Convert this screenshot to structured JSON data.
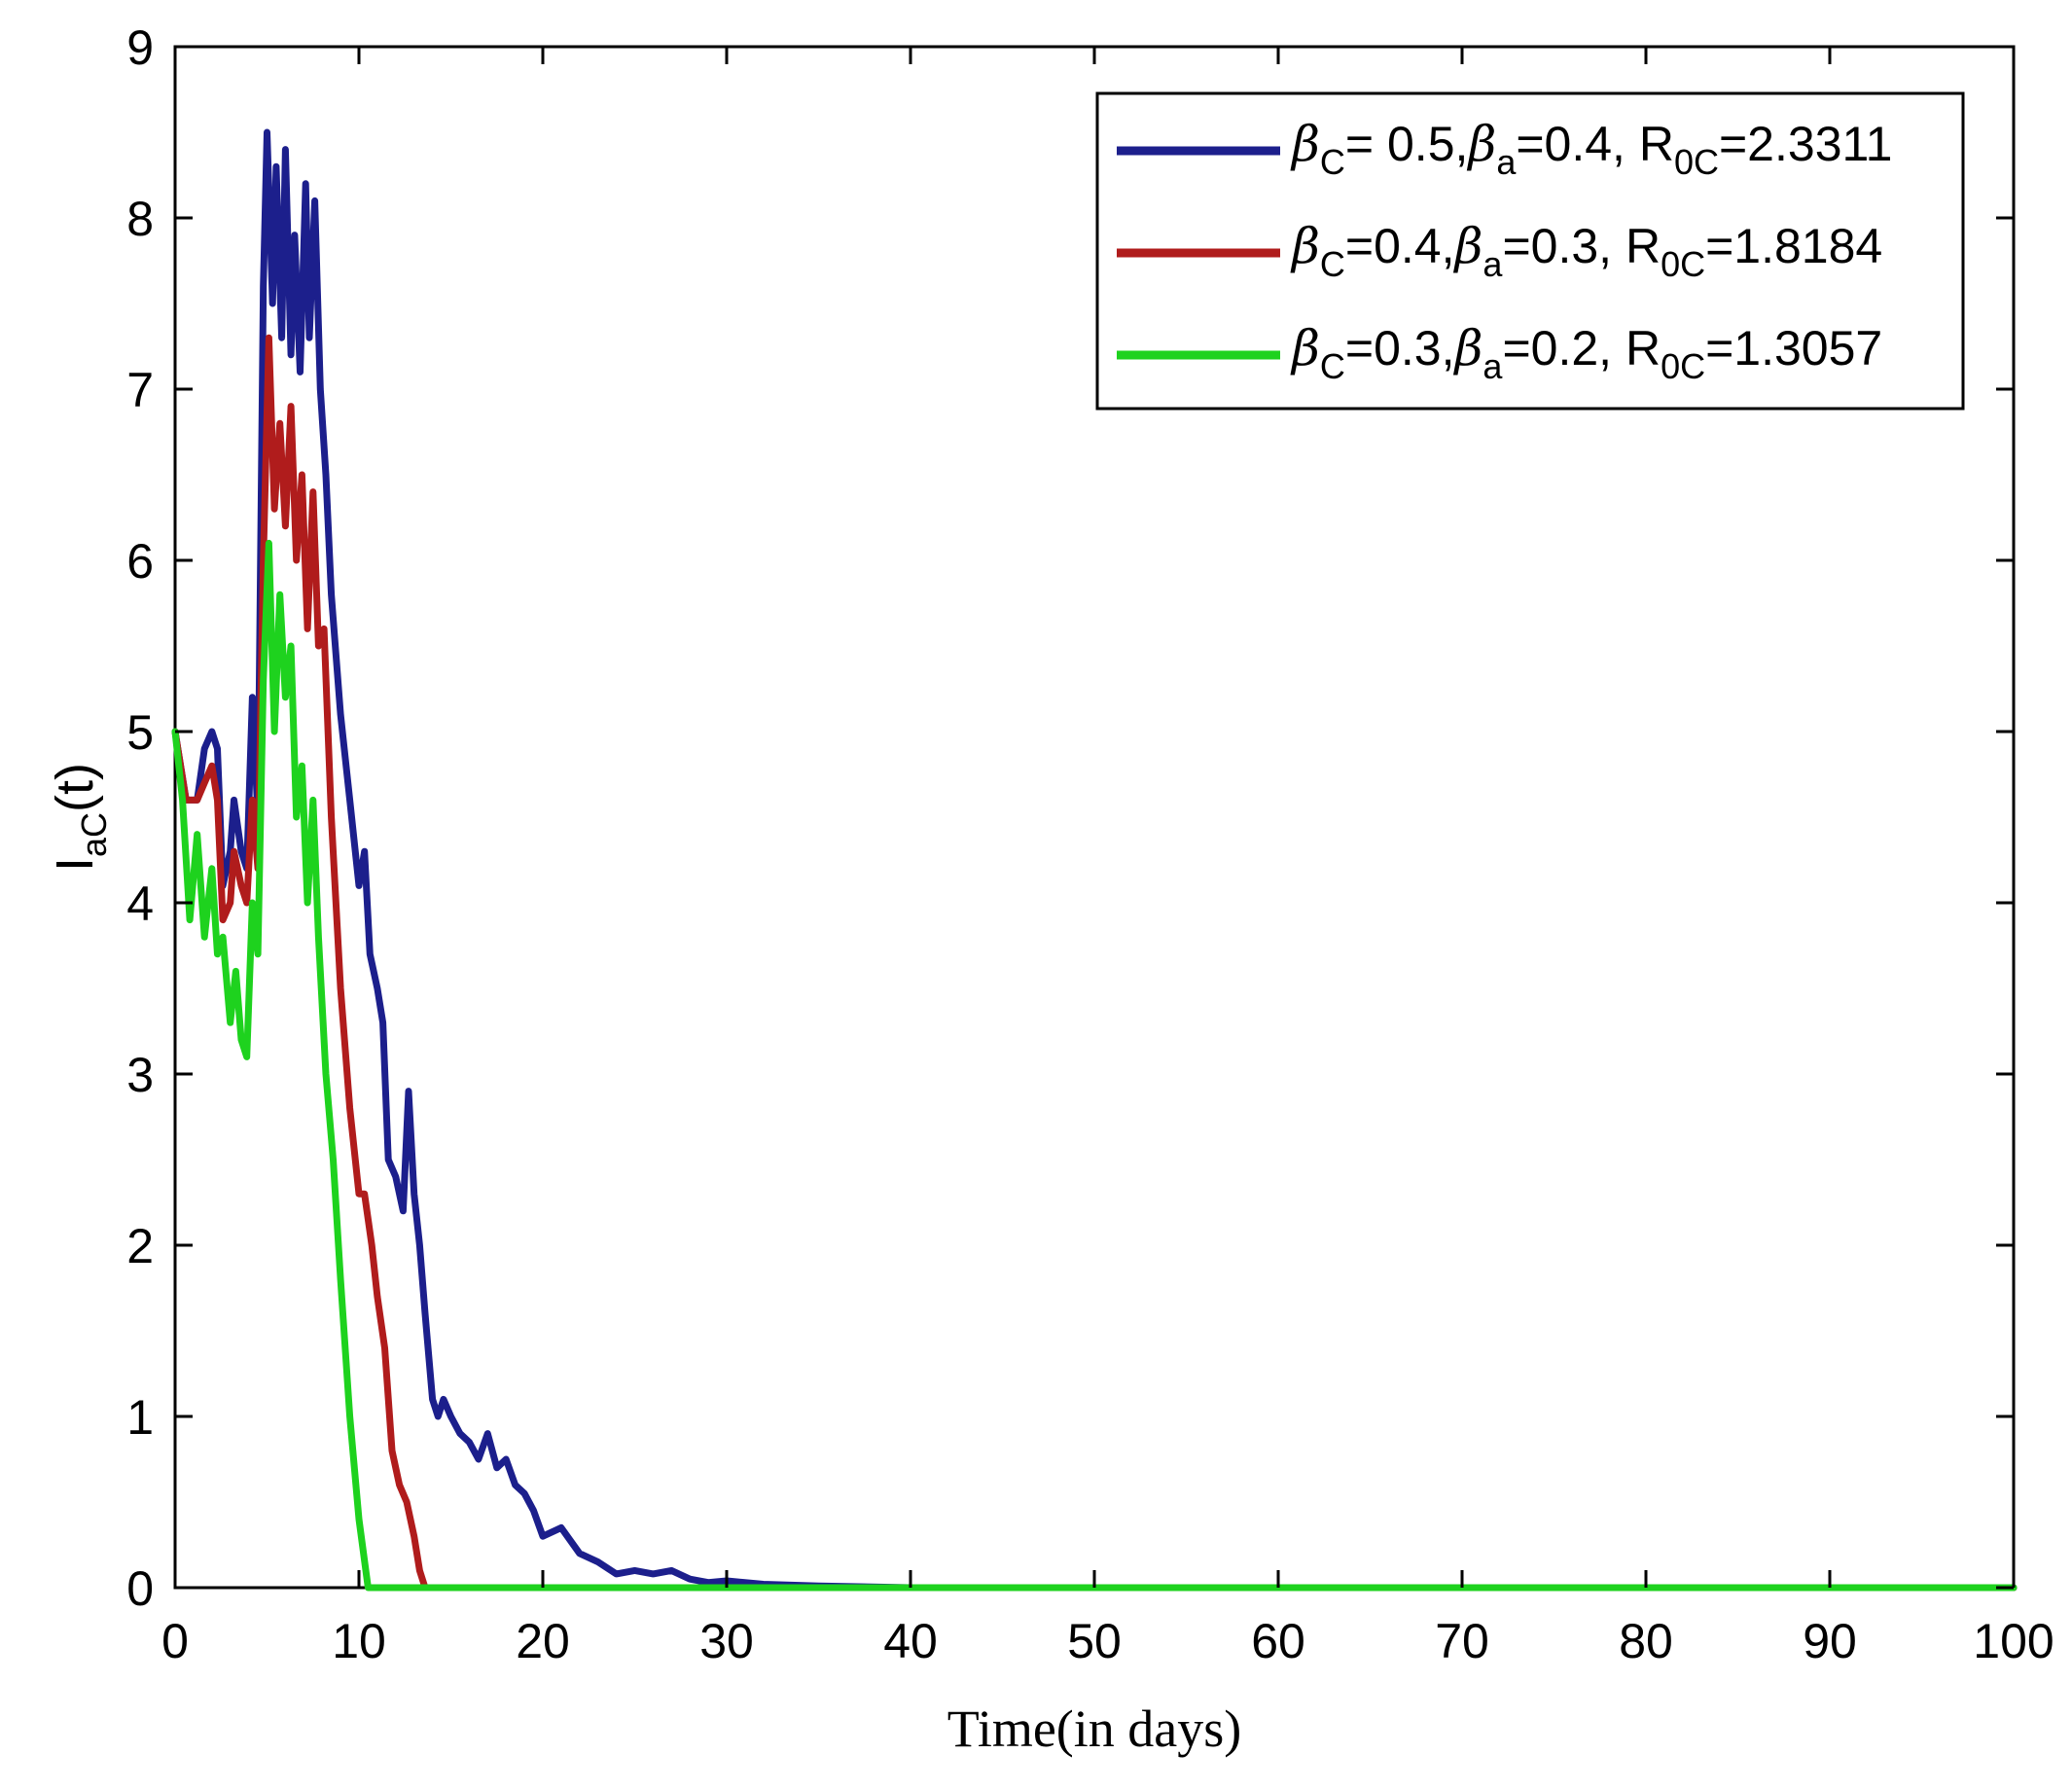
{
  "chart_data": {
    "type": "line",
    "title": "",
    "xlabel": "Time(in days)",
    "ylabel": {
      "main": "I",
      "sub": "aC",
      "suffix": "(t)"
    },
    "xlim": [
      0,
      100
    ],
    "ylim": [
      0,
      9
    ],
    "xticks": [
      0,
      10,
      20,
      30,
      40,
      50,
      60,
      70,
      80,
      90,
      100
    ],
    "yticks": [
      0,
      1,
      2,
      3,
      4,
      5,
      6,
      7,
      8,
      9
    ],
    "grid": false,
    "legend_position": "top-right",
    "series": [
      {
        "legend": {
          "bc_sep": "= ",
          "bc": "0.5,",
          "ba_sep": "=",
          "ba": "0.4, R",
          "r_sep": "=",
          "r": "2.3311"
        },
        "color": "#1c1f8c",
        "x": [
          0,
          0.6,
          1.2,
          1.6,
          2.0,
          2.3,
          2.6,
          3.0,
          3.2,
          3.6,
          3.9,
          4.2,
          4.5,
          4.8,
          5.0,
          5.3,
          5.5,
          5.8,
          6.0,
          6.3,
          6.5,
          6.8,
          7.1,
          7.3,
          7.6,
          7.9,
          8.2,
          8.5,
          9.0,
          9.5,
          10.0,
          10.3,
          10.6,
          11.0,
          11.3,
          11.6,
          12.0,
          12.4,
          12.7,
          13.0,
          13.3,
          13.6,
          14.0,
          14.3,
          14.6,
          15.0,
          15.5,
          16.0,
          16.5,
          17.0,
          17.5,
          18.0,
          18.5,
          19.0,
          19.5,
          20.0,
          21.0,
          22.0,
          23.0,
          24.0,
          25.0,
          26.0,
          27.0,
          28.0,
          29.0,
          30.0,
          32.0,
          35.0,
          40.0,
          50.0,
          60.0,
          70.0,
          80.0,
          90.0,
          100.0
        ],
        "values": [
          5.0,
          4.6,
          4.6,
          4.9,
          5.0,
          4.9,
          4.1,
          4.3,
          4.6,
          4.3,
          4.2,
          5.2,
          4.5,
          7.6,
          8.5,
          7.5,
          8.3,
          7.3,
          8.4,
          7.2,
          7.9,
          7.1,
          8.2,
          7.3,
          8.1,
          7.0,
          6.5,
          5.8,
          5.1,
          4.6,
          4.1,
          4.3,
          3.7,
          3.5,
          3.3,
          2.5,
          2.4,
          2.2,
          2.9,
          2.3,
          2.0,
          1.6,
          1.1,
          1.0,
          1.1,
          1.0,
          0.9,
          0.85,
          0.75,
          0.9,
          0.7,
          0.75,
          0.6,
          0.55,
          0.45,
          0.3,
          0.35,
          0.2,
          0.15,
          0.08,
          0.1,
          0.08,
          0.1,
          0.05,
          0.03,
          0.04,
          0.02,
          0.01,
          0.0,
          0.0,
          0.0,
          0.0,
          0.0,
          0.0,
          0.0
        ]
      },
      {
        "legend": {
          "bc_sep": "=",
          "bc": "0.4,",
          "ba_sep": "=",
          "ba": "0.3, R",
          "r_sep": "=",
          "r": "1.8184"
        },
        "color": "#b01c1c",
        "x": [
          0,
          0.6,
          1.2,
          1.6,
          2.0,
          2.3,
          2.6,
          3.0,
          3.2,
          3.6,
          3.9,
          4.2,
          4.5,
          4.8,
          5.1,
          5.4,
          5.7,
          6.0,
          6.3,
          6.6,
          6.9,
          7.2,
          7.5,
          7.8,
          8.1,
          8.5,
          9.0,
          9.5,
          10.0,
          10.3,
          10.7,
          11.0,
          11.4,
          11.8,
          12.2,
          12.6,
          13.0,
          13.3,
          13.6,
          15.0,
          20.0,
          30.0,
          40.0,
          50.0,
          60.0,
          70.0,
          80.0,
          90.0,
          100.0
        ],
        "values": [
          5.0,
          4.6,
          4.6,
          4.7,
          4.8,
          4.6,
          3.9,
          4.0,
          4.3,
          4.1,
          4.0,
          4.6,
          4.2,
          6.0,
          7.3,
          6.3,
          6.8,
          6.2,
          6.9,
          6.0,
          6.5,
          5.6,
          6.4,
          5.5,
          5.6,
          4.5,
          3.5,
          2.8,
          2.3,
          2.3,
          2.0,
          1.7,
          1.4,
          0.8,
          0.6,
          0.5,
          0.3,
          0.1,
          0.0,
          0.0,
          0.0,
          0.0,
          0.0,
          0.0,
          0.0,
          0.0,
          0.0,
          0.0,
          0.0
        ]
      },
      {
        "legend": {
          "bc_sep": "=",
          "bc": "0.3,",
          "ba_sep": "=",
          "ba": "0.2, R",
          "r_sep": "=",
          "r": "1.3057"
        },
        "color": "#1ed21e",
        "x": [
          0,
          0.4,
          0.8,
          1.2,
          1.6,
          2.0,
          2.3,
          2.6,
          3.0,
          3.3,
          3.6,
          3.9,
          4.2,
          4.5,
          4.8,
          5.1,
          5.4,
          5.7,
          6.0,
          6.3,
          6.6,
          6.9,
          7.2,
          7.5,
          7.8,
          8.2,
          8.6,
          9.0,
          9.5,
          10.0,
          10.5,
          11.0,
          15.0,
          20.0,
          30.0,
          40.0,
          50.0,
          60.0,
          70.0,
          80.0,
          90.0,
          100.0
        ],
        "values": [
          5.0,
          4.6,
          3.9,
          4.4,
          3.8,
          4.2,
          3.7,
          3.8,
          3.3,
          3.6,
          3.2,
          3.1,
          4.0,
          3.7,
          5.3,
          6.1,
          5.0,
          5.8,
          5.2,
          5.5,
          4.5,
          4.8,
          4.0,
          4.6,
          3.8,
          3.0,
          2.5,
          1.8,
          1.0,
          0.4,
          0.0,
          0.0,
          0.0,
          0.0,
          0.0,
          0.0,
          0.0,
          0.0,
          0.0,
          0.0,
          0.0,
          0.0
        ]
      }
    ]
  }
}
